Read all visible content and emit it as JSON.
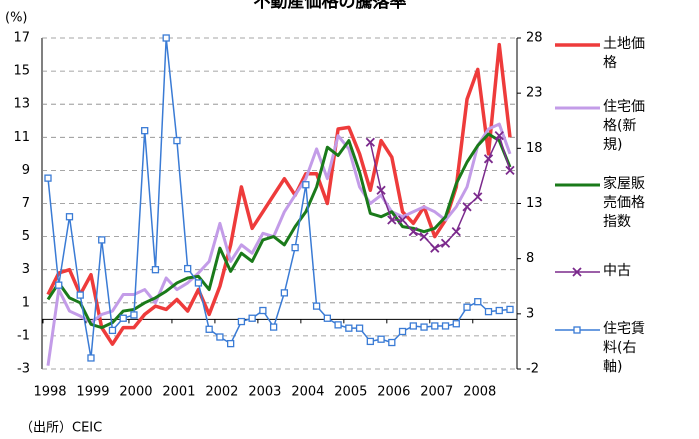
{
  "chart_data": {
    "type": "line",
    "title": "不動産価格の騰落率",
    "y_label": "(%)",
    "source": "（出所）CEIC",
    "categories": [
      "1998",
      null,
      null,
      null,
      "1999",
      null,
      null,
      null,
      "2000",
      null,
      null,
      null,
      "2001",
      null,
      null,
      null,
      "2002",
      null,
      null,
      null,
      "2003",
      null,
      null,
      null,
      "2004",
      null,
      null,
      null,
      "2005",
      null,
      null,
      null,
      "2006",
      null,
      null,
      null,
      "2007",
      null,
      null,
      null,
      "2008",
      null,
      null,
      null
    ],
    "ylim": [
      -3,
      17
    ],
    "yticks": [
      -3,
      -1,
      1,
      3,
      5,
      7,
      9,
      11,
      13,
      15,
      17
    ],
    "y2lim": [
      -2,
      28
    ],
    "y2ticks": [
      -2,
      3,
      8,
      13,
      18,
      23,
      28
    ],
    "grid": true,
    "series": [
      {
        "name": "土地価格",
        "color": "#ee3b3b",
        "width": 3.5,
        "values": [
          1.5,
          2.8,
          3.0,
          1.5,
          2.7,
          -0.5,
          -1.5,
          -0.5,
          -0.5,
          0.3,
          0.8,
          0.6,
          1.2,
          0.5,
          1.8,
          0.3,
          2.0,
          4.5,
          8.0,
          5.5,
          6.5,
          7.5,
          8.5,
          7.5,
          8.8,
          8.8,
          7.0,
          11.5,
          11.6,
          10.0,
          7.8,
          10.8,
          9.8,
          6.5,
          5.8,
          6.8,
          5.0,
          6.0,
          8.0,
          13.3,
          15.1,
          10.0,
          16.6,
          11.0
        ]
      },
      {
        "name": "住宅価格(新規)",
        "color": "#c39ce8",
        "width": 3,
        "values": [
          -2.8,
          1.8,
          0.5,
          0.2,
          -0.2,
          0.3,
          0.5,
          1.5,
          1.5,
          1.8,
          1.0,
          2.5,
          1.8,
          2.2,
          2.8,
          3.5,
          5.8,
          3.5,
          4.5,
          4.0,
          5.2,
          5.0,
          6.5,
          7.5,
          8.5,
          10.3,
          8.5,
          11.1,
          10.3,
          8.0,
          7.0,
          7.5,
          6.5,
          6.2,
          6.5,
          6.8,
          6.5,
          6.0,
          6.8,
          8.0,
          10.5,
          11.5,
          11.8,
          10.0
        ]
      },
      {
        "name": "家屋販売価格指数",
        "color": "#1a7a1a",
        "width": 3,
        "values": [
          1.2,
          2.2,
          1.3,
          1.0,
          -0.3,
          -0.5,
          -0.2,
          0.5,
          0.6,
          1.0,
          1.3,
          1.7,
          2.2,
          2.5,
          2.6,
          1.8,
          4.3,
          2.9,
          4.0,
          3.5,
          4.8,
          5.0,
          4.5,
          5.6,
          6.5,
          8.0,
          10.4,
          9.9,
          10.8,
          8.9,
          6.4,
          6.2,
          6.5,
          5.6,
          5.5,
          5.3,
          5.5,
          6.2,
          8.2,
          9.5,
          10.5,
          11.2,
          10.8,
          9.2
        ]
      },
      {
        "name": "中古",
        "color": "#7b2a8c",
        "width": 1.5,
        "marker": "x",
        "values": [
          null,
          null,
          null,
          null,
          null,
          null,
          null,
          null,
          null,
          null,
          null,
          null,
          null,
          null,
          null,
          null,
          null,
          null,
          null,
          null,
          null,
          null,
          null,
          null,
          null,
          null,
          null,
          null,
          null,
          null,
          10.7,
          7.8,
          6.0,
          6.0,
          5.3,
          5.0,
          4.3,
          4.6,
          5.3,
          6.8,
          7.4,
          9.7,
          11.1,
          9.0
        ]
      },
      {
        "name": "住宅賃料(右軸)",
        "color": "#3a7bd5",
        "width": 1.5,
        "marker": "square",
        "axis": "y2",
        "values": [
          15.3,
          5.6,
          11.8,
          4.7,
          -1.0,
          9.7,
          1.5,
          2.6,
          2.9,
          19.6,
          7.0,
          28,
          18.7,
          7.1,
          5.8,
          1.6,
          0.9,
          0.3,
          2.3,
          2.6,
          3.3,
          1.8,
          4.9,
          9.0,
          14.7,
          3.7,
          2.6,
          2.0,
          1.7,
          1.7,
          0.5,
          0.7,
          0.4,
          1.4,
          1.9,
          1.8,
          1.9,
          1.9,
          2.1,
          3.6,
          4.1,
          3.2,
          3.3,
          3.4
        ]
      }
    ]
  }
}
